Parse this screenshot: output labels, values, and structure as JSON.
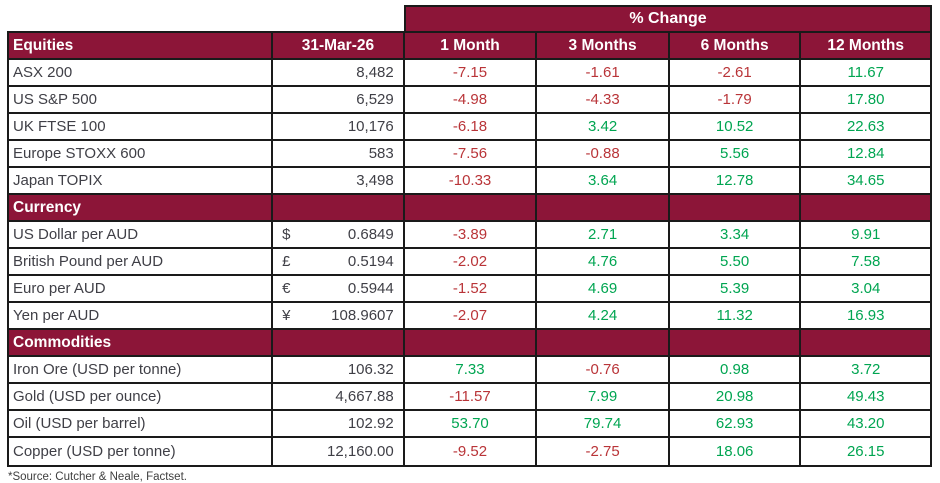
{
  "chart_data": {
    "type": "table",
    "title": "% Change",
    "date_column_header": "31-Mar-26",
    "period_headers": [
      "1 Month",
      "3 Months",
      "6 Months",
      "12 Months"
    ],
    "sections": [
      {
        "title": "Equities",
        "rows": [
          {
            "label": "ASX 200",
            "symbol": "",
            "value": "8,482",
            "changes": [
              "-7.15",
              "-1.61",
              "-2.61",
              "11.67"
            ]
          },
          {
            "label": "US S&P 500",
            "symbol": "",
            "value": "6,529",
            "changes": [
              "-4.98",
              "-4.33",
              "-1.79",
              "17.80"
            ]
          },
          {
            "label": "UK FTSE 100",
            "symbol": "",
            "value": "10,176",
            "changes": [
              "-6.18",
              "3.42",
              "10.52",
              "22.63"
            ]
          },
          {
            "label": "Europe STOXX 600",
            "symbol": "",
            "value": "583",
            "changes": [
              "-7.56",
              "-0.88",
              "5.56",
              "12.84"
            ]
          },
          {
            "label": "Japan TOPIX",
            "symbol": "",
            "value": "3,498",
            "changes": [
              "-10.33",
              "3.64",
              "12.78",
              "34.65"
            ]
          }
        ]
      },
      {
        "title": "Currency",
        "rows": [
          {
            "label": "US Dollar per AUD",
            "symbol": "$",
            "value": "0.6849",
            "changes": [
              "-3.89",
              "2.71",
              "3.34",
              "9.91"
            ]
          },
          {
            "label": "British Pound per AUD",
            "symbol": "£",
            "value": "0.5194",
            "changes": [
              "-2.02",
              "4.76",
              "5.50",
              "7.58"
            ]
          },
          {
            "label": "Euro per AUD",
            "symbol": "€",
            "value": "0.5944",
            "changes": [
              "-1.52",
              "4.69",
              "5.39",
              "3.04"
            ]
          },
          {
            "label": "Yen per AUD",
            "symbol": "¥",
            "value": "108.9607",
            "changes": [
              "-2.07",
              "4.24",
              "11.32",
              "16.93"
            ]
          }
        ]
      },
      {
        "title": "Commodities",
        "rows": [
          {
            "label": "Iron Ore (USD per tonne)",
            "symbol": "",
            "value": "106.32",
            "changes": [
              "7.33",
              "-0.76",
              "0.98",
              "3.72"
            ]
          },
          {
            "label": "Gold (USD per ounce)",
            "symbol": "",
            "value": "4,667.88",
            "changes": [
              "-11.57",
              "7.99",
              "20.98",
              "49.43"
            ]
          },
          {
            "label": "Oil (USD per barrel)",
            "symbol": "",
            "value": "102.92",
            "changes": [
              "53.70",
              "79.74",
              "62.93",
              "43.20"
            ]
          },
          {
            "label": "Copper (USD per tonne)",
            "symbol": "",
            "value": "12,160.00",
            "changes": [
              "-9.52",
              "-2.75",
              "18.06",
              "26.15"
            ]
          }
        ]
      }
    ],
    "footnote": "*Source: Cutcher & Neale, Factset.",
    "colors": {
      "header_maroon": "#8C1538",
      "positive_green": "#00A551",
      "negative_red": "#B93438",
      "label_gray": "#3F3F46",
      "border_black": "#1A1A1A"
    }
  }
}
